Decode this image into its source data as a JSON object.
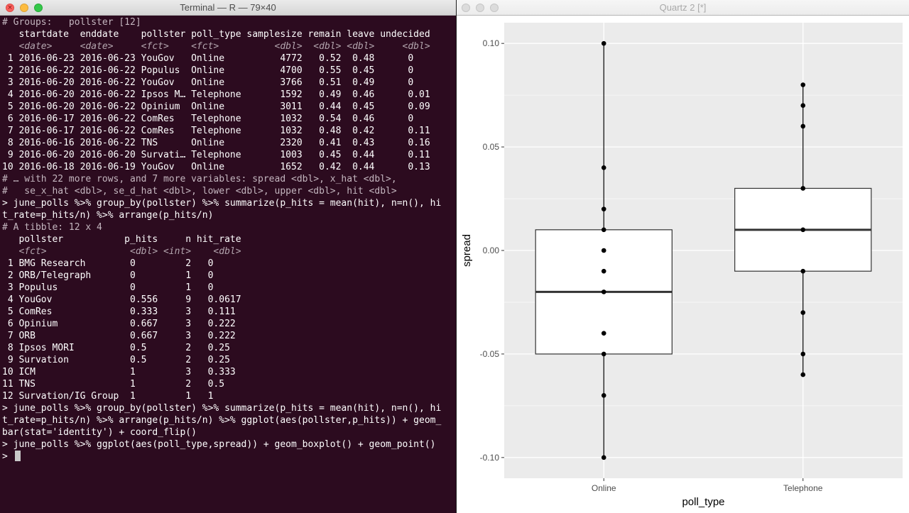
{
  "terminal": {
    "title": "Terminal — R — 79×40",
    "lines": [
      {
        "text": "# Groups:   pollster [12]",
        "style": "comment"
      },
      {
        "text": "   startdate  enddate    pollster poll_type samplesize remain leave undecided",
        "style": "out"
      },
      {
        "text": "   <date>     <date>     <fct>    <fct>          <dbl>  <dbl> <dbl>     <dbl>",
        "style": "type"
      },
      {
        "text": " 1 2016-06-23 2016-06-23 YouGov   Online          4772   0.52  0.48      0",
        "style": "out"
      },
      {
        "text": " 2 2016-06-22 2016-06-22 Populus  Online          4700   0.55  0.45      0",
        "style": "out"
      },
      {
        "text": " 3 2016-06-20 2016-06-22 YouGov   Online          3766   0.51  0.49      0",
        "style": "out"
      },
      {
        "text": " 4 2016-06-20 2016-06-22 Ipsos M… Telephone       1592   0.49  0.46      0.01",
        "style": "out"
      },
      {
        "text": " 5 2016-06-20 2016-06-22 Opinium  Online          3011   0.44  0.45      0.09",
        "style": "out"
      },
      {
        "text": " 6 2016-06-17 2016-06-22 ComRes   Telephone       1032   0.54  0.46      0",
        "style": "out"
      },
      {
        "text": " 7 2016-06-17 2016-06-22 ComRes   Telephone       1032   0.48  0.42      0.11",
        "style": "out"
      },
      {
        "text": " 8 2016-06-16 2016-06-22 TNS      Online          2320   0.41  0.43      0.16",
        "style": "out"
      },
      {
        "text": " 9 2016-06-20 2016-06-20 Survati… Telephone       1003   0.45  0.44      0.11",
        "style": "out"
      },
      {
        "text": "10 2016-06-18 2016-06-19 YouGov   Online          1652   0.42  0.44      0.13",
        "style": "out"
      },
      {
        "text": "# … with 22 more rows, and 7 more variables: spread <dbl>, x_hat <dbl>,",
        "style": "comment"
      },
      {
        "text": "#   se_x_hat <dbl>, se_d_hat <dbl>, lower <dbl>, upper <dbl>, hit <dbl>",
        "style": "comment"
      },
      {
        "text": "> june_polls %>% group_by(pollster) %>% summarize(p_hits = mean(hit), n=n(), hi",
        "style": "cmd"
      },
      {
        "text": "t_rate=p_hits/n) %>% arrange(p_hits/n)",
        "style": "cmd"
      },
      {
        "text": "# A tibble: 12 x 4",
        "style": "comment"
      },
      {
        "text": "   pollster           p_hits     n hit_rate",
        "style": "out"
      },
      {
        "text": "   <fct>               <dbl> <int>    <dbl>",
        "style": "type"
      },
      {
        "text": " 1 BMG Research        0         2   0",
        "style": "out"
      },
      {
        "text": " 2 ORB/Telegraph       0         1   0",
        "style": "out"
      },
      {
        "text": " 3 Populus             0         1   0",
        "style": "out"
      },
      {
        "text": " 4 YouGov              0.556     9   0.0617",
        "style": "out"
      },
      {
        "text": " 5 ComRes              0.333     3   0.111",
        "style": "out"
      },
      {
        "text": " 6 Opinium             0.667     3   0.222",
        "style": "out"
      },
      {
        "text": " 7 ORB                 0.667     3   0.222",
        "style": "out"
      },
      {
        "text": " 8 Ipsos MORI          0.5       2   0.25",
        "style": "out"
      },
      {
        "text": " 9 Survation           0.5       2   0.25",
        "style": "out"
      },
      {
        "text": "10 ICM                 1         3   0.333",
        "style": "out"
      },
      {
        "text": "11 TNS                 1         2   0.5",
        "style": "out"
      },
      {
        "text": "12 Survation/IG Group  1         1   1",
        "style": "out"
      },
      {
        "text": "> june_polls %>% group_by(pollster) %>% summarize(p_hits = mean(hit), n=n(), hi",
        "style": "cmd"
      },
      {
        "text": "t_rate=p_hits/n) %>% arrange(p_hits/n) %>% ggplot(aes(pollster,p_hits)) + geom_",
        "style": "cmd"
      },
      {
        "text": "bar(stat='identity') + coord_flip()",
        "style": "cmd"
      },
      {
        "text": "> june_polls %>% ggplot(aes(poll_type,spread)) + geom_boxplot() + geom_point() ",
        "style": "cmd"
      },
      {
        "text": "> ",
        "style": "cmd",
        "cursor": true
      }
    ]
  },
  "quartz": {
    "title": "Quartz 2 [*]"
  },
  "chart_data": {
    "type": "boxplot",
    "xlabel": "poll_type",
    "ylabel": "spread",
    "categories": [
      "Online",
      "Telephone"
    ],
    "ylim": [
      -0.11,
      0.11
    ],
    "yticks": [
      -0.1,
      -0.05,
      0.0,
      0.05,
      0.1
    ],
    "ytick_labels": [
      "-0.10",
      "-0.05",
      "0.00",
      "0.05",
      "0.10"
    ],
    "grid": true,
    "boxes": [
      {
        "category": "Online",
        "min": -0.1,
        "q1": -0.05,
        "median": -0.02,
        "q3": 0.01,
        "max": 0.1
      },
      {
        "category": "Telephone",
        "min": -0.06,
        "q1": -0.01,
        "median": 0.01,
        "q3": 0.03,
        "max": 0.08
      }
    ],
    "points": [
      {
        "category": "Online",
        "y": 0.1
      },
      {
        "category": "Online",
        "y": 0.04
      },
      {
        "category": "Online",
        "y": 0.02
      },
      {
        "category": "Online",
        "y": 0.01
      },
      {
        "category": "Online",
        "y": 0.0
      },
      {
        "category": "Online",
        "y": -0.01
      },
      {
        "category": "Online",
        "y": -0.02
      },
      {
        "category": "Online",
        "y": -0.04
      },
      {
        "category": "Online",
        "y": -0.05
      },
      {
        "category": "Online",
        "y": -0.07
      },
      {
        "category": "Online",
        "y": -0.1
      },
      {
        "category": "Telephone",
        "y": 0.08
      },
      {
        "category": "Telephone",
        "y": 0.07
      },
      {
        "category": "Telephone",
        "y": 0.06
      },
      {
        "category": "Telephone",
        "y": 0.03
      },
      {
        "category": "Telephone",
        "y": 0.01
      },
      {
        "category": "Telephone",
        "y": -0.01
      },
      {
        "category": "Telephone",
        "y": -0.03
      },
      {
        "category": "Telephone",
        "y": -0.05
      },
      {
        "category": "Telephone",
        "y": -0.06
      }
    ],
    "colors": {
      "panel": "#ebebeb",
      "grid": "#ffffff",
      "box_fill": "#ffffff",
      "ink": "#000000",
      "median": "#333333"
    }
  }
}
